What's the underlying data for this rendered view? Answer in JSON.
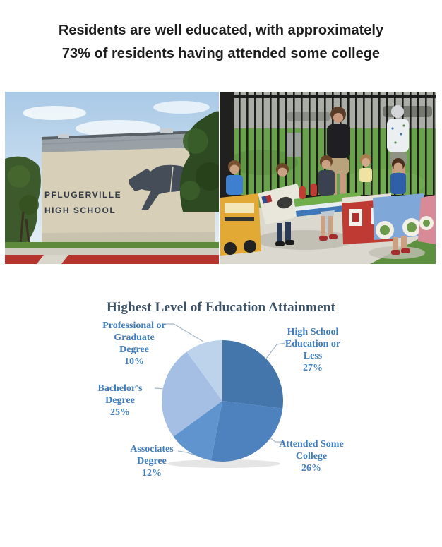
{
  "headline": {
    "line1": "Residents are well educated, with approximately",
    "line2": "73% of residents having attended some college"
  },
  "left_photo_sign": {
    "line1": "PFLUGERVILLE",
    "line2": "HIGH SCHOOL"
  },
  "chart_data": {
    "type": "pie",
    "title": "Highest Level of Education Attainment",
    "direction": "clockwise",
    "start_angle_deg": 0,
    "legend": "none",
    "label_style": "outside-callouts-with-leader-lines",
    "title_color": "#3D5266",
    "label_color": "#3F7DBE",
    "leader_line_color": "#A6B8CA",
    "slices": [
      {
        "label": "High School Education or Less",
        "value": 27,
        "pct": "27%",
        "color": "#4476AC",
        "callout": [
          "High School",
          "Education or",
          "Less",
          "27%"
        ]
      },
      {
        "label": "Attended Some College",
        "value": 26,
        "pct": "26%",
        "color": "#4E82BE",
        "callout": [
          "Attended Some",
          "College",
          "26%"
        ]
      },
      {
        "label": "Associates Degree",
        "value": 12,
        "pct": "12%",
        "color": "#6094CE",
        "callout": [
          "Associates",
          "Degree",
          "12%"
        ]
      },
      {
        "label": "Bachelor's Degree",
        "value": 25,
        "pct": "25%",
        "color": "#A4BFE3",
        "callout": [
          "Bachelor's",
          "Degree",
          "25%"
        ]
      },
      {
        "label": "Professional or Graduate Degree",
        "value": 10,
        "pct": "10%",
        "color": "#BDD3EC",
        "callout": [
          "Professional or",
          "Graduate",
          "Degree",
          "10%"
        ]
      }
    ]
  }
}
